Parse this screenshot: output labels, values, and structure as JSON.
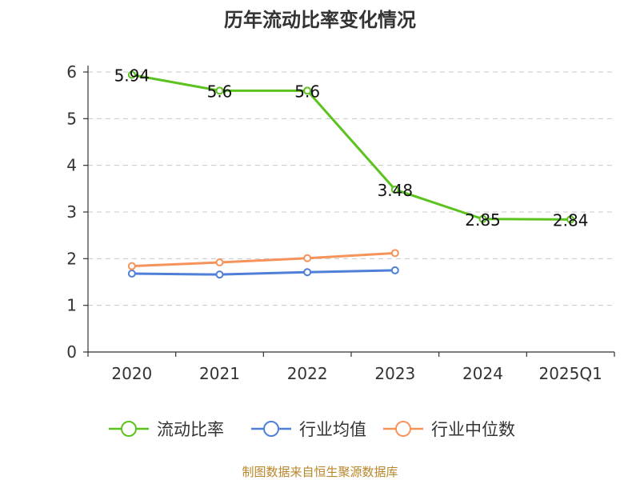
{
  "chart_data": {
    "type": "line",
    "title": "历年流动比率变化情况",
    "categories": [
      "2020",
      "2021",
      "2022",
      "2023",
      "2024",
      "2025Q1"
    ],
    "ylim": [
      0,
      6
    ],
    "yticks": [
      "0",
      "1",
      "2",
      "3",
      "4",
      "5",
      "6"
    ],
    "grid": true,
    "legend_position": "bottom",
    "series": [
      {
        "name": "流动比率",
        "color": "#5cc21f",
        "values": [
          5.94,
          5.6,
          5.6,
          3.48,
          2.85,
          2.84
        ],
        "labels": [
          "5.94",
          "5.6",
          "5.6",
          "3.48",
          "2.85",
          "2.84"
        ]
      },
      {
        "name": "行业均值",
        "color": "#4f7fd8",
        "values": [
          1.68,
          1.66,
          1.71,
          1.75,
          null,
          null
        ]
      },
      {
        "name": "行业中位数",
        "color": "#f5935a",
        "values": [
          1.84,
          1.92,
          2.01,
          2.12,
          null,
          null
        ]
      }
    ],
    "source": "制图数据来自恒生聚源数据库",
    "source_color": "#b8862b"
  }
}
